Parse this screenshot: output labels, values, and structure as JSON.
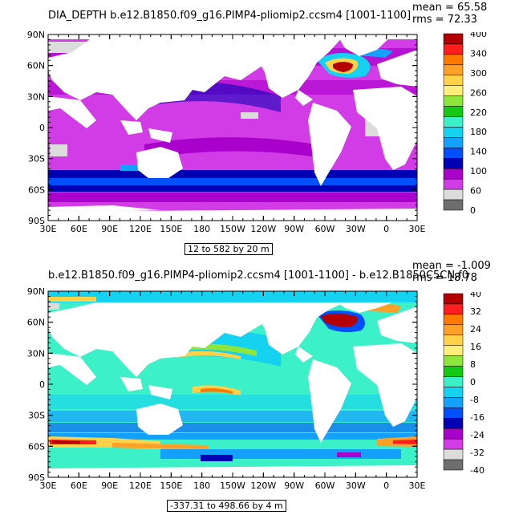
{
  "panels": [
    {
      "title": "DIA_DEPTH b.e12.B1850.f09_g16.PIMP4-pliomip2.ccsm4 [1001-1100]",
      "mean_text": "mean = 65.58",
      "rms_text": "rms = 72.33",
      "range_text": "12 to 582 by 20 m",
      "colorbar": {
        "labels": [
          "400",
          "340",
          "300",
          "260",
          "220",
          "180",
          "140",
          "100",
          "60",
          "0"
        ],
        "colors": [
          "#b40000",
          "#ff1e1e",
          "#ff7800",
          "#ffa028",
          "#ffd24a",
          "#ffee7a",
          "#8ce63c",
          "#14c814",
          "#3cf0c8",
          "#14d2f0",
          "#14a0ff",
          "#0050ff",
          "#0000b4",
          "#aa00cc",
          "#d23ce6",
          "#dcdcdc",
          "#6e6e6e"
        ]
      }
    },
    {
      "title": "b.e12.B1850.f09_g16.PIMP4-pliomip2.ccsm4 [1001-1100] - b.e12.B1850C5CN.f0",
      "mean_text": "mean = -1.009",
      "rms_text": "rms = 18.78",
      "range_text": "-337.31 to 498.66 by 4 m",
      "colorbar": {
        "labels": [
          "40",
          "32",
          "24",
          "16",
          "8",
          "0",
          "-8",
          "-16",
          "-24",
          "-32",
          "-40"
        ],
        "colors": [
          "#b40000",
          "#ff1e1e",
          "#ff7800",
          "#ffa028",
          "#ffd24a",
          "#ffee7a",
          "#8ce63c",
          "#14c814",
          "#3cf0c8",
          "#14d2f0",
          "#14a0ff",
          "#0050ff",
          "#0000b4",
          "#aa00cc",
          "#d23ce6",
          "#dcdcdc",
          "#6e6e6e"
        ]
      }
    }
  ],
  "lat_labels": [
    "90N",
    "60N",
    "30N",
    "0",
    "30S",
    "60S",
    "90S"
  ],
  "lon_labels": [
    "30E",
    "60E",
    "90E",
    "120E",
    "150E",
    "180",
    "150W",
    "120W",
    "90W",
    "60W",
    "30W",
    "0",
    "30E"
  ]
}
